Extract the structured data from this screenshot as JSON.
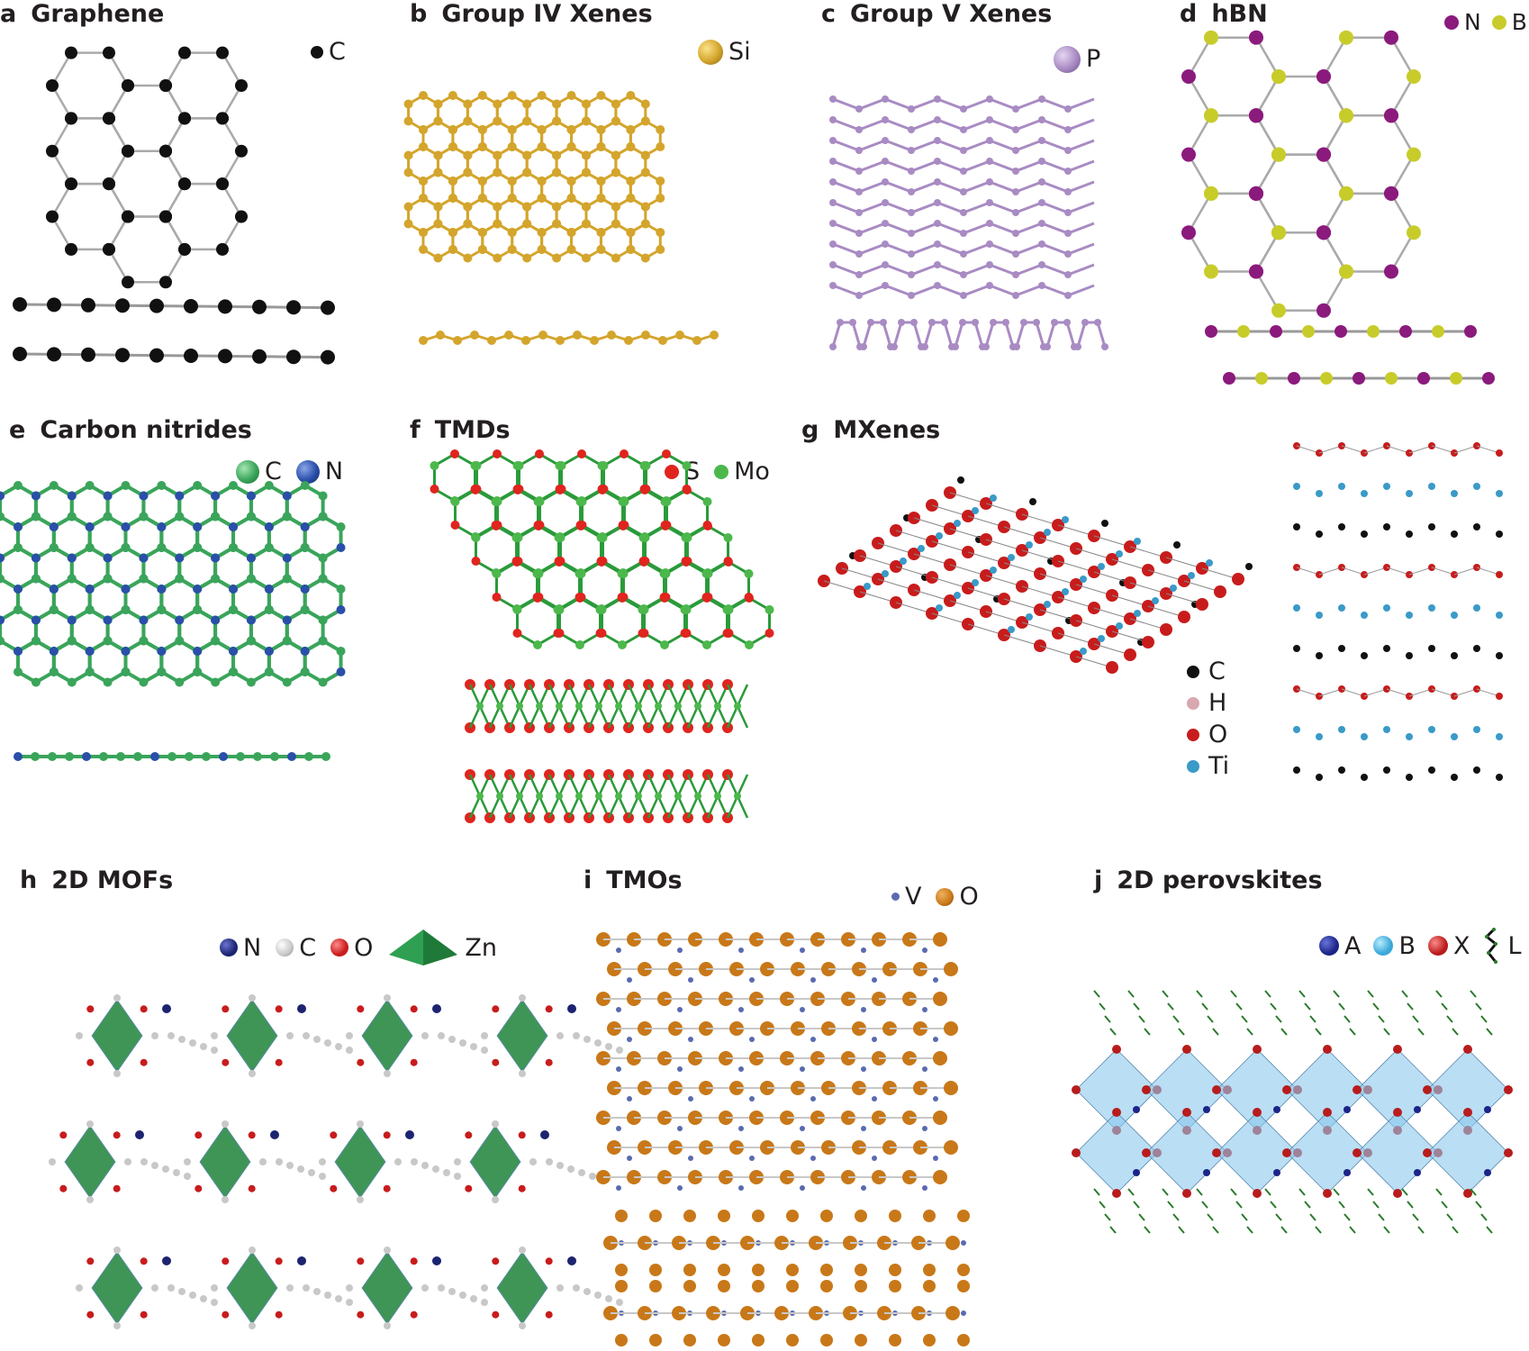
{
  "panels": [
    {
      "id": "a",
      "letter": "a",
      "title": "Graphene",
      "legend": [
        {
          "label": "C",
          "color": "#111111"
        }
      ]
    },
    {
      "id": "b",
      "letter": "b",
      "title": "Group IV Xenes",
      "legend": [
        {
          "label": "Si",
          "color": "#d4a52c"
        }
      ]
    },
    {
      "id": "c",
      "letter": "c",
      "title": "Group V Xenes",
      "legend": [
        {
          "label": "P",
          "color": "#a98bc3"
        }
      ]
    },
    {
      "id": "d",
      "letter": "d",
      "title": "hBN",
      "legend": [
        {
          "label": "N",
          "color": "#8b1a7d"
        },
        {
          "label": "B",
          "color": "#c8cc2a"
        }
      ]
    },
    {
      "id": "e",
      "letter": "e",
      "title": "Carbon nitrides",
      "legend": [
        {
          "label": "C",
          "color": "#3aa55a"
        },
        {
          "label": "N",
          "color": "#2a4fa8"
        }
      ]
    },
    {
      "id": "f",
      "letter": "f",
      "title": "TMDs",
      "legend": [
        {
          "label": "S",
          "color": "#e0241e"
        },
        {
          "label": "Mo",
          "color": "#4cb84c"
        }
      ]
    },
    {
      "id": "g",
      "letter": "g",
      "title": "MXenes",
      "legend": [
        {
          "label": "C",
          "color": "#111111"
        },
        {
          "label": "H",
          "color": "#d8a8b0"
        },
        {
          "label": "O",
          "color": "#c81c1c"
        },
        {
          "label": "Ti",
          "color": "#3a9ac8"
        }
      ]
    },
    {
      "id": "h",
      "letter": "h",
      "title": "2D MOFs",
      "legend": [
        {
          "label": "N",
          "color": "#1c2470"
        },
        {
          "label": "C",
          "color": "#c8c8c8"
        },
        {
          "label": "O",
          "color": "#c81c1c"
        },
        {
          "label": "Zn",
          "color": "#2a8a44"
        }
      ]
    },
    {
      "id": "i",
      "letter": "i",
      "title": "TMOs",
      "legend": [
        {
          "label": "V",
          "color": "#5a6ab0"
        },
        {
          "label": "O",
          "color": "#c87818"
        }
      ]
    },
    {
      "id": "j",
      "letter": "j",
      "title": "2D perovskites",
      "legend": [
        {
          "label": "A",
          "color": "#1c2488"
        },
        {
          "label": "B",
          "color": "#3aa8d8"
        },
        {
          "label": "X",
          "color": "#b81c1c"
        },
        {
          "label": "L",
          "color": "#2a7a2a"
        }
      ]
    }
  ]
}
